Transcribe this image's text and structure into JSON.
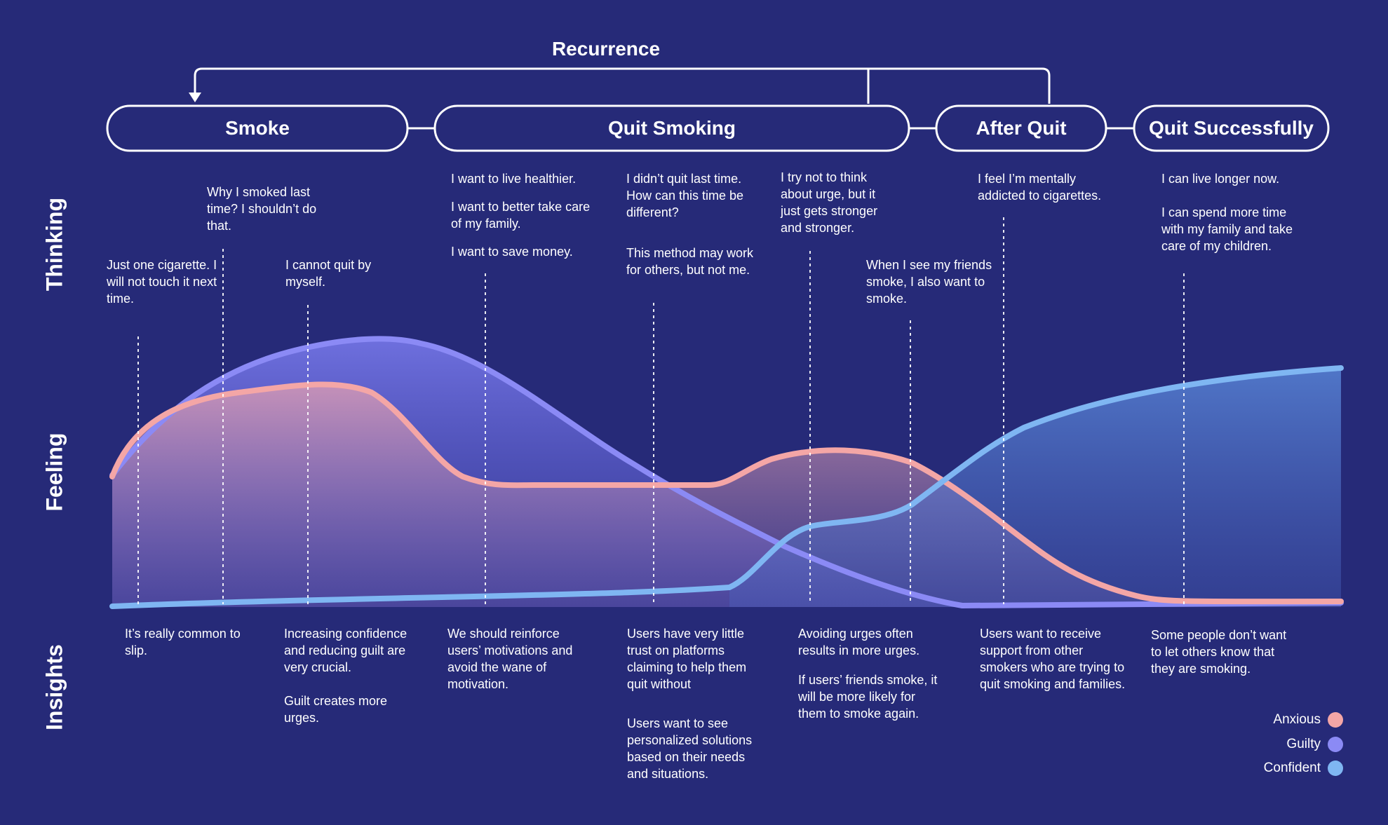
{
  "recurrence_label": "Recurrence",
  "stages": [
    "Smoke",
    "Quit Smoking",
    "After Quit",
    "Quit Successfully"
  ],
  "sections": [
    "Thinking",
    "Feeling",
    "Insights"
  ],
  "thoughts": [
    [
      "Just one cigarette. I will not touch it next time."
    ],
    [
      "Why I smoked last time? I shouldn’t do that."
    ],
    [
      "I cannot quit by myself."
    ],
    [
      "I want to live healthier.",
      "I want to better take care of my family.",
      "I want to save money."
    ],
    [
      "I didn’t quit last time. How can this time be different?",
      "This method may work for others, but not me."
    ],
    [
      "I try not to think about urge, but it just gets stronger and stronger."
    ],
    [
      "When I see my friends smoke, I also want to smoke."
    ],
    [
      "I feel I’m mentally addicted to cigarettes."
    ],
    [
      "I can live longer now.",
      "I can spend more time with my family and take care of my children."
    ]
  ],
  "insights": [
    [
      "It’s really common to slip."
    ],
    [
      "Increasing confidence and reducing guilt are very crucial.",
      "Guilt creates more urges."
    ],
    [
      "We should reinforce users’ motivations and avoid the wane of motivation."
    ],
    [
      "Users have very little trust on platforms claiming to help them quit without",
      "Users want to see personalized solutions based on their needs and situations."
    ],
    [
      "Avoiding urges often results in more urges.",
      "If users’ friends smoke, it will be more likely for them to smoke again."
    ],
    [
      "Users want to receive support from other smokers who are trying to quit smoking and families."
    ],
    [
      "Some people don’t want to let others know that they are smoking."
    ]
  ],
  "legend": [
    {
      "label": "Anxious",
      "color": "#f4a6a6"
    },
    {
      "label": "Guilty",
      "color": "#8b8af5"
    },
    {
      "label": "Confident",
      "color": "#7fb6f2"
    }
  ],
  "colors": {
    "background": "#262a78",
    "line": "#ffffff"
  }
}
